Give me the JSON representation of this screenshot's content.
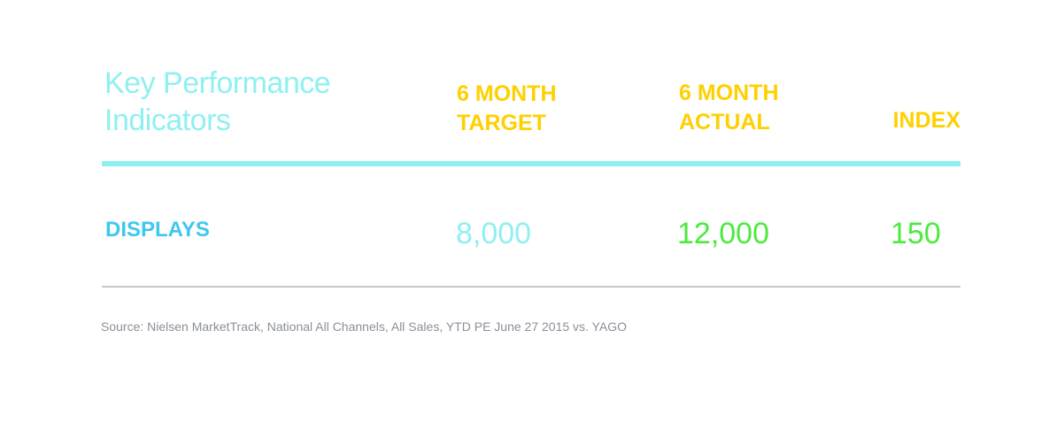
{
  "chart_data": {
    "type": "table",
    "title_lines": [
      "Key Performance",
      "Indicators"
    ],
    "columns": [
      {
        "lines": [
          "6 MONTH",
          "TARGET"
        ]
      },
      {
        "lines": [
          "6 MONTH",
          "ACTUAL"
        ]
      },
      {
        "lines": [
          "INDEX"
        ]
      }
    ],
    "rows": [
      {
        "label": "DISPLAYS",
        "target": "8,000",
        "actual": "12,000",
        "index": "150"
      }
    ],
    "source": "Source: Nielsen MarketTrack, National All Channels, All Sales, YTD PE June 27 2015 vs. YAGO"
  },
  "colors": {
    "title": "#8ff0f2",
    "header": "#ffd000",
    "row_label": "#3ec8ee",
    "target_value": "#8ff0f2",
    "actual_value": "#4cea3e",
    "index_value": "#4cea3e",
    "source_text": "#8a9098",
    "top_rule": "#8ff0f2",
    "bottom_rule": "#c9c9c9"
  }
}
